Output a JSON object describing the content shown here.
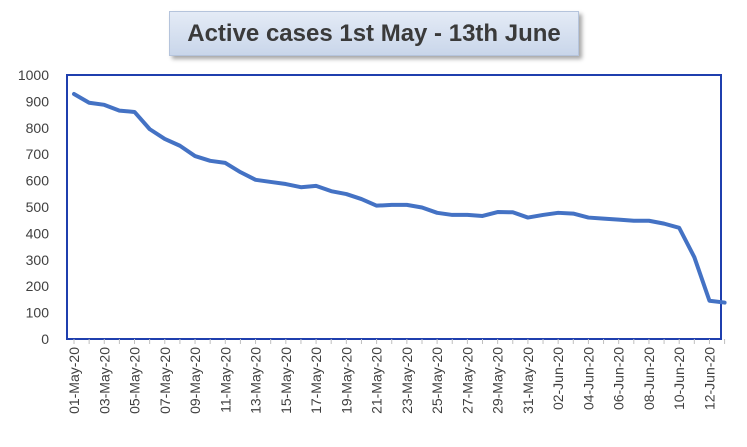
{
  "chart_data": {
    "type": "line",
    "title": "Active cases 1st May - 13th June",
    "xlabel": "",
    "ylabel": "",
    "ylim": [
      0,
      1000
    ],
    "yticks": [
      0,
      100,
      200,
      300,
      400,
      500,
      600,
      700,
      800,
      900,
      1000
    ],
    "grid": false,
    "legend": "none",
    "x": [
      "01-May-20",
      "02-May-20",
      "03-May-20",
      "04-May-20",
      "05-May-20",
      "06-May-20",
      "07-May-20",
      "08-May-20",
      "09-May-20",
      "10-May-20",
      "11-May-20",
      "12-May-20",
      "13-May-20",
      "14-May-20",
      "15-May-20",
      "16-May-20",
      "17-May-20",
      "18-May-20",
      "19-May-20",
      "20-May-20",
      "21-May-20",
      "22-May-20",
      "23-May-20",
      "24-May-20",
      "25-May-20",
      "26-May-20",
      "27-May-20",
      "28-May-20",
      "29-May-20",
      "30-May-20",
      "31-May-20",
      "01-Jun-20",
      "02-Jun-20",
      "03-Jun-20",
      "04-Jun-20",
      "05-Jun-20",
      "06-Jun-20",
      "07-Jun-20",
      "08-Jun-20",
      "09-Jun-20",
      "10-Jun-20",
      "11-Jun-20",
      "12-Jun-20",
      "13-Jun-20"
    ],
    "xtick_labels": [
      "01-May-20",
      "03-May-20",
      "05-May-20",
      "07-May-20",
      "09-May-20",
      "11-May-20",
      "13-May-20",
      "15-May-20",
      "17-May-20",
      "19-May-20",
      "21-May-20",
      "23-May-20",
      "25-May-20",
      "27-May-20",
      "29-May-20",
      "31-May-20",
      "02-Jun-20",
      "04-Jun-20",
      "06-Jun-20",
      "08-Jun-20",
      "10-Jun-20",
      "12-Jun-20"
    ],
    "series": [
      {
        "values": [
          928,
          895,
          887,
          865,
          860,
          795,
          758,
          732,
          693,
          675,
          667,
          632,
          603,
          595,
          587,
          575,
          580,
          560,
          549,
          530,
          505,
          508,
          508,
          498,
          478,
          470,
          470,
          466,
          481,
          480,
          460,
          470,
          478,
          475,
          460,
          456,
          452,
          448,
          448,
          437,
          421,
          310,
          145,
          138
        ],
        "color": "#4472c4"
      }
    ],
    "plot_border_color": "#1f3fae"
  }
}
